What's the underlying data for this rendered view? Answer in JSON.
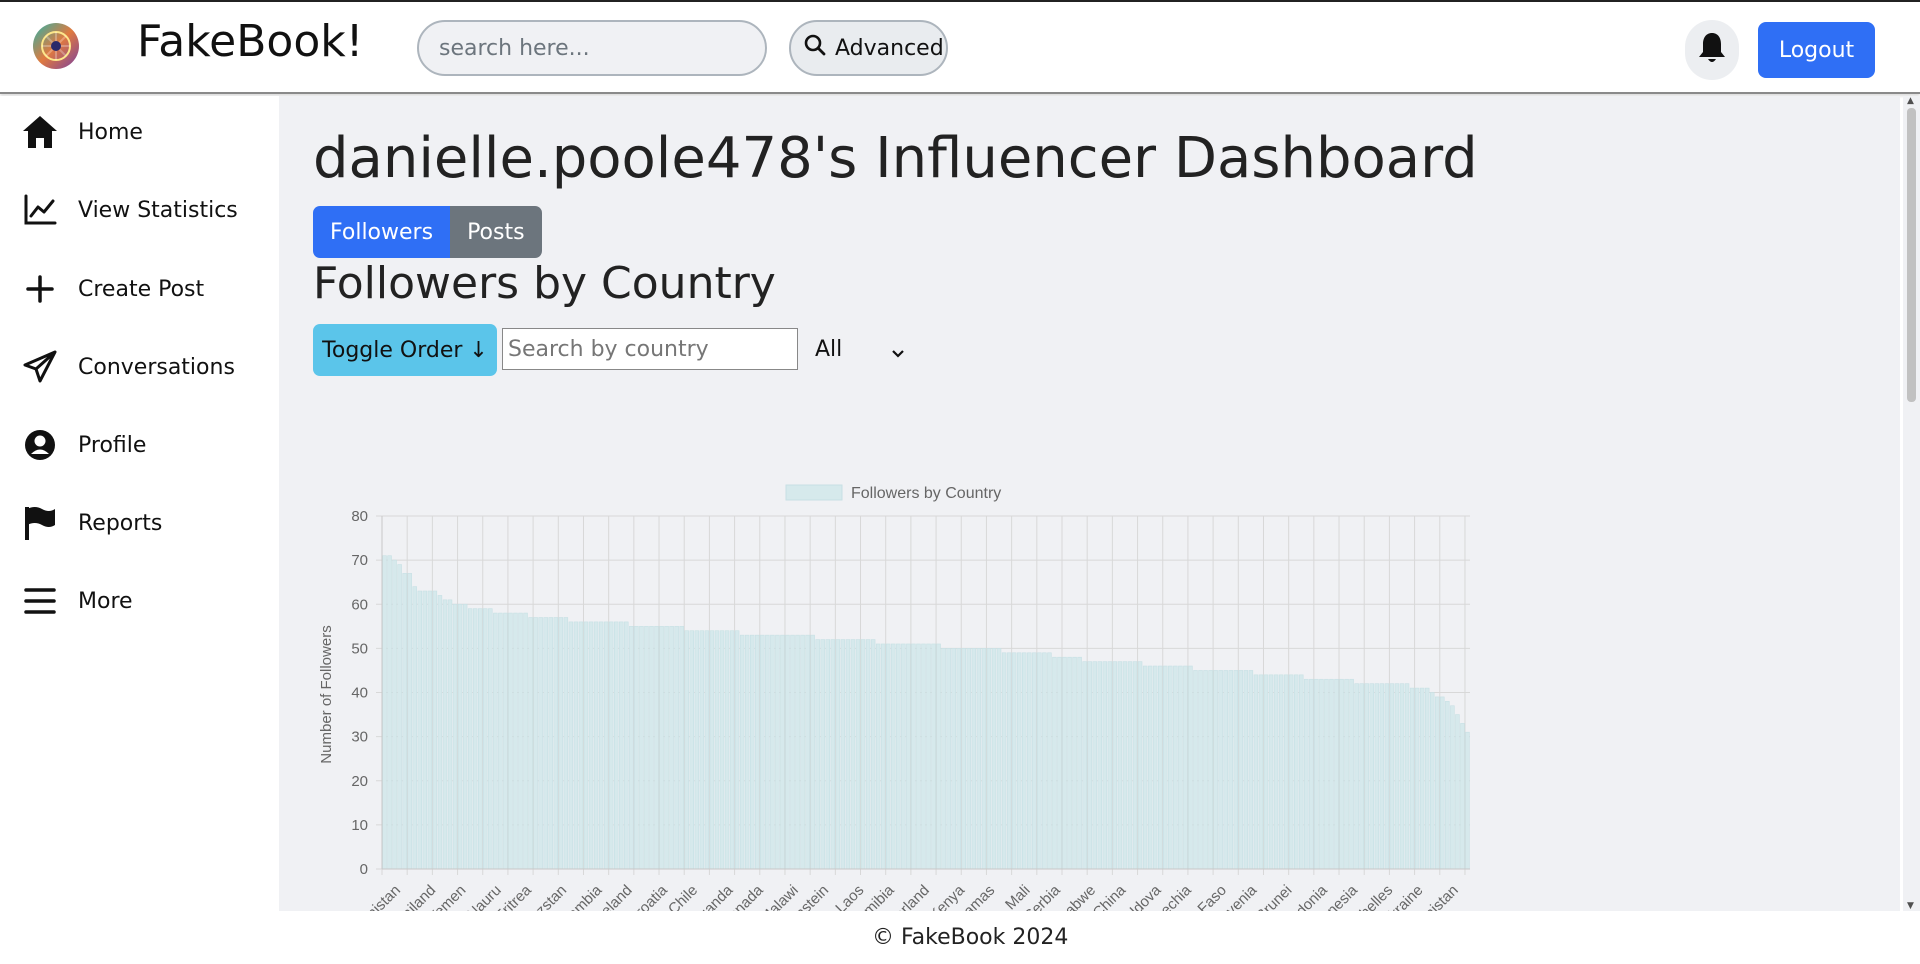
{
  "header": {
    "brand": "FakeBook!",
    "search_placeholder": "search here...",
    "advanced_label": "Advanced",
    "logout_label": "Logout"
  },
  "sidebar": {
    "items": [
      {
        "label": "Home",
        "icon": "home-icon"
      },
      {
        "label": "View Statistics",
        "icon": "chart-line-icon"
      },
      {
        "label": "Create Post",
        "icon": "plus-icon"
      },
      {
        "label": "Conversations",
        "icon": "paper-plane-icon"
      },
      {
        "label": "Profile",
        "icon": "user-circle-icon"
      },
      {
        "label": "Reports",
        "icon": "flag-icon"
      },
      {
        "label": "More",
        "icon": "menu-icon"
      }
    ]
  },
  "main": {
    "title": "danielle.poole478's Influencer Dashboard",
    "tabs": [
      {
        "label": "Followers",
        "active": true
      },
      {
        "label": "Posts",
        "active": false
      }
    ],
    "section_title": "Followers by Country",
    "toggle_label": "Toggle Order ↓",
    "country_search_placeholder": "Search by country",
    "filter_value": "All"
  },
  "footer": {
    "text": "© FakeBook 2024"
  },
  "colors": {
    "primary": "#2f6ff5",
    "info": "#5bc5ea",
    "secondary": "#6c757d",
    "bar_fill": "#d6e9ec",
    "bar_stroke": "#c7e0e4"
  },
  "chart_data": {
    "type": "bar",
    "legend": "Followers by Country",
    "ylabel": "Number of Followers",
    "ylim": [
      0,
      80
    ],
    "yticks": [
      0,
      10,
      20,
      30,
      40,
      50,
      60,
      70,
      80
    ],
    "grid": true,
    "legend_position": "top-center",
    "x_tick_labels": [
      "Turkmenistan",
      "Thailand",
      "Yemen",
      "Nauru",
      "Eritrea",
      "Kyrgyzstan",
      "Gambia",
      "Iceland",
      "Croatia",
      "Chile",
      "Uganda",
      "Grenada",
      "Malawi",
      "Liechtenstein",
      "Laos",
      "Namibia",
      "Switzerland",
      "Kenya",
      "Bahamas",
      "Mali",
      "Serbia",
      "Zimbabwe",
      "China",
      "Moldova",
      "Czechia",
      "Burkina Faso",
      "Slovenia",
      "Brunei",
      "North Macedonia",
      "Indonesia",
      "Seychelles",
      "Ukraine",
      "Afghanistan"
    ],
    "values": [
      71,
      71,
      70,
      69,
      67,
      67,
      64,
      63,
      63,
      63,
      63,
      62,
      61,
      61,
      60,
      60,
      60,
      59,
      59,
      59,
      59,
      59,
      58,
      58,
      58,
      58,
      58,
      58,
      58,
      57,
      57,
      57,
      57,
      57,
      57,
      57,
      57,
      56,
      56,
      56,
      56,
      56,
      56,
      56,
      56,
      56,
      56,
      56,
      56,
      55,
      55,
      55,
      55,
      55,
      55,
      55,
      55,
      55,
      55,
      55,
      54,
      54,
      54,
      54,
      54,
      54,
      54,
      54,
      54,
      54,
      54,
      53,
      53,
      53,
      53,
      53,
      53,
      53,
      53,
      53,
      53,
      53,
      53,
      53,
      53,
      53,
      52,
      52,
      52,
      52,
      52,
      52,
      52,
      52,
      52,
      52,
      52,
      52,
      51,
      51,
      51,
      51,
      51,
      51,
      51,
      51,
      51,
      51,
      51,
      51,
      51,
      50,
      50,
      50,
      50,
      50,
      50,
      50,
      50,
      50,
      50,
      50,
      50,
      49,
      49,
      49,
      49,
      49,
      49,
      49,
      49,
      49,
      49,
      48,
      48,
      48,
      48,
      48,
      48,
      47,
      47,
      47,
      47,
      47,
      47,
      47,
      47,
      47,
      47,
      47,
      47,
      46,
      46,
      46,
      46,
      46,
      46,
      46,
      46,
      46,
      46,
      45,
      45,
      45,
      45,
      45,
      45,
      45,
      45,
      45,
      45,
      45,
      45,
      44,
      44,
      44,
      44,
      44,
      44,
      44,
      44,
      44,
      44,
      43,
      43,
      43,
      43,
      43,
      43,
      43,
      43,
      43,
      43,
      42,
      42,
      42,
      42,
      42,
      42,
      42,
      42,
      42,
      42,
      42,
      41,
      41,
      41,
      41,
      40,
      39,
      39,
      38,
      37,
      35,
      33,
      31
    ]
  }
}
